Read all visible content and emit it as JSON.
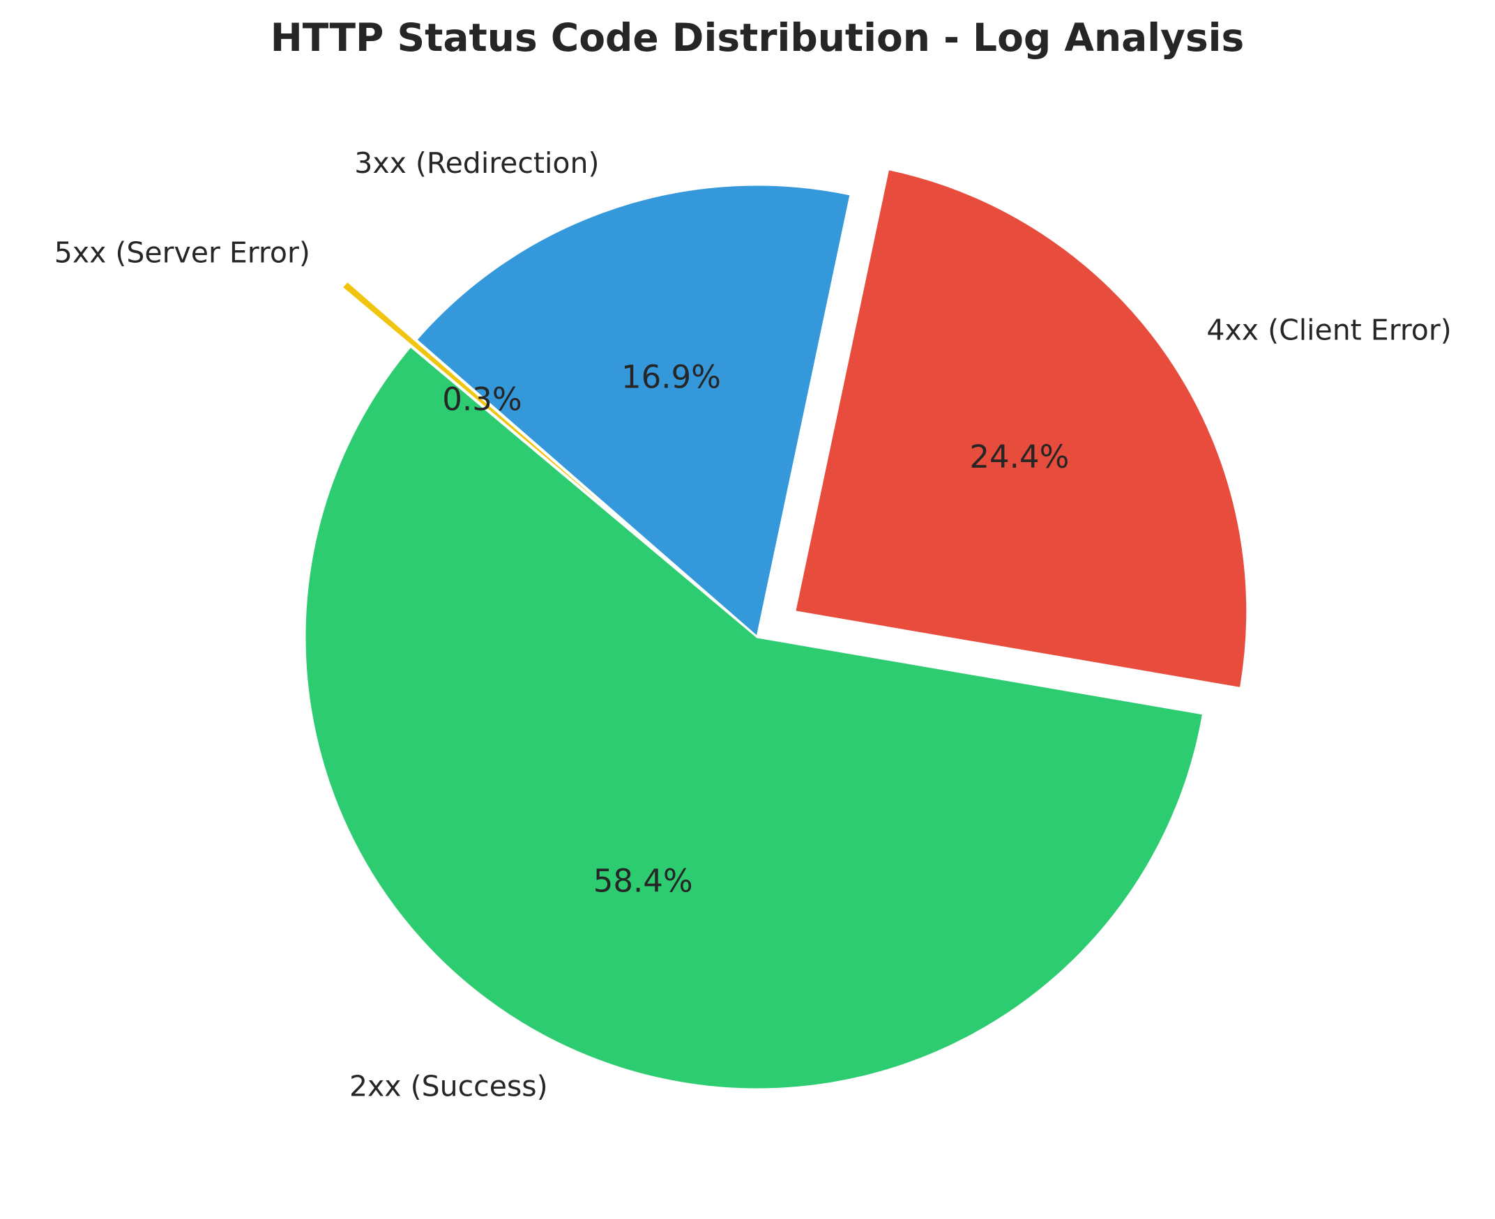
{
  "chart_data": {
    "type": "pie",
    "title": "HTTP Status Code Distribution - Log Analysis",
    "categories": [
      "2xx (Success)",
      "4xx (Client Error)",
      "3xx (Redirection)",
      "5xx (Server Error)"
    ],
    "values": [
      58.4,
      24.4,
      16.9,
      0.3
    ],
    "value_labels": [
      "58.4%",
      "24.4%",
      "16.9%",
      "0.3%"
    ],
    "colors": [
      "#2ecc71",
      "#e74c3c",
      "#3498db",
      "#f1c40f"
    ],
    "explode": [
      0,
      0.1,
      0,
      0.2
    ],
    "start_angle": 140
  }
}
